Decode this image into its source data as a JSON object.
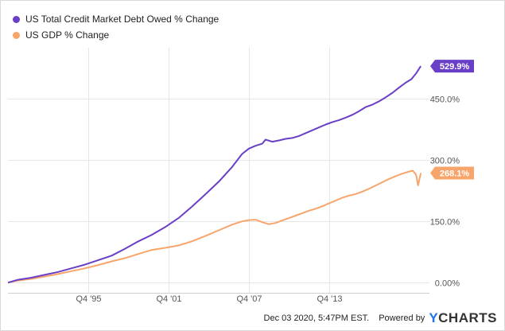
{
  "chart_data": {
    "type": "line",
    "title": "",
    "xlabel": "",
    "ylabel": "",
    "x_tick_labels": [
      "Q4 '95",
      "Q4 '01",
      "Q4 '07",
      "Q4 '13"
    ],
    "x_ticks": [
      1995.75,
      2001.75,
      2007.75,
      2013.75
    ],
    "y_tick_labels": [
      "0.00%",
      "150.0%",
      "300.0%",
      "450.0%"
    ],
    "y_ticks": [
      0,
      150,
      300,
      450
    ],
    "xlim": [
      1989.75,
      2021.25
    ],
    "ylim": [
      -25,
      575
    ],
    "grid": true,
    "legend_position": "top-left",
    "series": [
      {
        "name": "US Total Credit Market Debt Owed % Change",
        "color": "#6a3fc7",
        "last_value_label": "529.9%",
        "points": [
          [
            1989.75,
            0
          ],
          [
            1990.5,
            7
          ],
          [
            1991.5,
            12
          ],
          [
            1992.5,
            19
          ],
          [
            1993.5,
            26
          ],
          [
            1994.5,
            35
          ],
          [
            1995.5,
            44
          ],
          [
            1996.5,
            55
          ],
          [
            1997.5,
            66
          ],
          [
            1998.5,
            83
          ],
          [
            1999.5,
            101
          ],
          [
            2000.5,
            117
          ],
          [
            2001.5,
            136
          ],
          [
            2002.5,
            158
          ],
          [
            2003.5,
            186
          ],
          [
            2004.5,
            216
          ],
          [
            2005.5,
            247
          ],
          [
            2006.5,
            283
          ],
          [
            2007.25,
            315
          ],
          [
            2007.75,
            328
          ],
          [
            2008.25,
            335
          ],
          [
            2008.75,
            340
          ],
          [
            2009.0,
            350
          ],
          [
            2009.5,
            345
          ],
          [
            2010.0,
            348
          ],
          [
            2010.5,
            352
          ],
          [
            2011.0,
            354
          ],
          [
            2011.5,
            359
          ],
          [
            2012.0,
            366
          ],
          [
            2012.5,
            373
          ],
          [
            2013.0,
            380
          ],
          [
            2013.5,
            387
          ],
          [
            2014.0,
            393
          ],
          [
            2014.5,
            398
          ],
          [
            2015.0,
            404
          ],
          [
            2015.5,
            411
          ],
          [
            2016.0,
            420
          ],
          [
            2016.5,
            430
          ],
          [
            2017.0,
            436
          ],
          [
            2017.5,
            444
          ],
          [
            2018.0,
            454
          ],
          [
            2018.5,
            465
          ],
          [
            2019.0,
            478
          ],
          [
            2019.5,
            490
          ],
          [
            2019.9,
            498
          ],
          [
            2020.25,
            512
          ],
          [
            2020.6,
            530
          ]
        ]
      },
      {
        "name": "US GDP % Change",
        "color": "#f7a56a",
        "last_value_label": "268.1%",
        "points": [
          [
            1989.75,
            0
          ],
          [
            1990.5,
            5
          ],
          [
            1991.5,
            9
          ],
          [
            1992.5,
            15
          ],
          [
            1993.5,
            21
          ],
          [
            1994.5,
            28
          ],
          [
            1995.5,
            35
          ],
          [
            1996.5,
            43
          ],
          [
            1997.5,
            52
          ],
          [
            1998.5,
            60
          ],
          [
            1999.5,
            70
          ],
          [
            2000.5,
            80
          ],
          [
            2001.5,
            85
          ],
          [
            2002.5,
            91
          ],
          [
            2003.5,
            101
          ],
          [
            2004.5,
            114
          ],
          [
            2005.5,
            128
          ],
          [
            2006.5,
            142
          ],
          [
            2007.25,
            150
          ],
          [
            2007.75,
            153
          ],
          [
            2008.25,
            154
          ],
          [
            2008.75,
            148
          ],
          [
            2009.25,
            143
          ],
          [
            2009.75,
            146
          ],
          [
            2010.25,
            152
          ],
          [
            2010.75,
            158
          ],
          [
            2011.25,
            164
          ],
          [
            2011.75,
            170
          ],
          [
            2012.25,
            176
          ],
          [
            2012.75,
            181
          ],
          [
            2013.25,
            187
          ],
          [
            2013.75,
            194
          ],
          [
            2014.25,
            201
          ],
          [
            2014.75,
            208
          ],
          [
            2015.25,
            213
          ],
          [
            2015.75,
            217
          ],
          [
            2016.25,
            223
          ],
          [
            2016.75,
            230
          ],
          [
            2017.25,
            238
          ],
          [
            2017.75,
            246
          ],
          [
            2018.25,
            254
          ],
          [
            2018.75,
            261
          ],
          [
            2019.25,
            267
          ],
          [
            2019.75,
            272
          ],
          [
            2020.0,
            274
          ],
          [
            2020.25,
            264
          ],
          [
            2020.4,
            238
          ],
          [
            2020.6,
            268.1
          ]
        ]
      }
    ]
  },
  "footer": {
    "timestamp": "Dec 03 2020, 5:47PM EST.",
    "powered_by": "Powered by",
    "logo_text": "YCHARTS"
  }
}
